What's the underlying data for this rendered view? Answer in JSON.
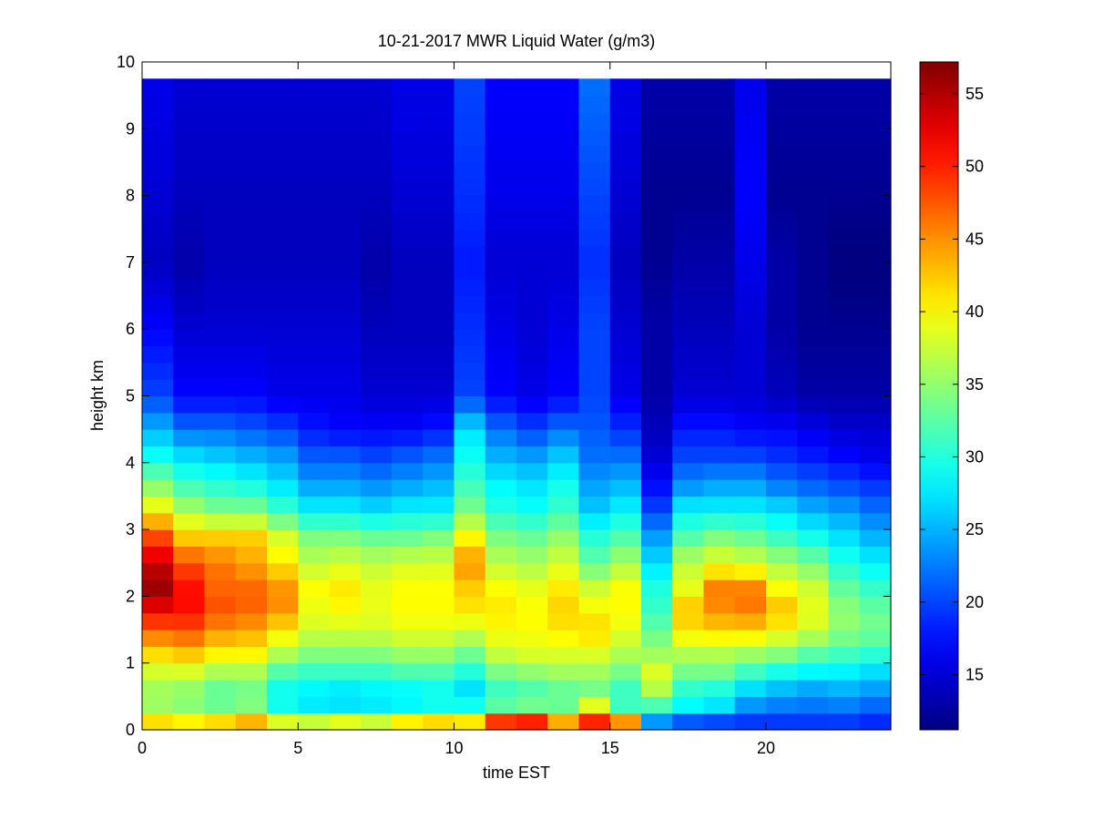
{
  "chart_data": {
    "type": "heatmap",
    "title": "10-21-2017 MWR Liquid Water (g/m3)",
    "xlabel": "time EST",
    "ylabel": "height km",
    "xlim": [
      0,
      24
    ],
    "ylim": [
      0,
      10
    ],
    "x_ticks": [
      "0",
      "5",
      "10",
      "15",
      "20"
    ],
    "y_ticks": [
      "0",
      "1",
      "2",
      "3",
      "4",
      "5",
      "6",
      "7",
      "8",
      "9",
      "10"
    ],
    "colorbar": {
      "colormap": "jet",
      "range": [
        11.2,
        57.2
      ],
      "ticks": [
        "15",
        "20",
        "25",
        "30",
        "35",
        "40",
        "45",
        "50",
        "55"
      ]
    },
    "grid": false,
    "time_hours": [
      0,
      1,
      2,
      3,
      4,
      5,
      6,
      7,
      8,
      9,
      10,
      11,
      12,
      13,
      14,
      15,
      16,
      17,
      18,
      19,
      20,
      21,
      22,
      23
    ],
    "height_profile_km": [
      0.0,
      0.15,
      0.3,
      0.5,
      0.8,
      1.1,
      1.5,
      1.8,
      2.1,
      2.5,
      2.9,
      3.3,
      3.7,
      4.1,
      4.5,
      5.0,
      6.0,
      7.0,
      8.0,
      9.75
    ],
    "columns": [
      [
        48,
        40,
        36,
        35,
        37,
        41,
        47,
        52,
        56,
        54,
        48,
        40,
        34,
        29,
        25,
        20,
        17,
        14,
        15,
        16
      ],
      [
        42,
        40,
        35,
        34,
        37,
        42,
        48,
        51,
        51,
        48,
        42,
        36,
        31,
        27,
        22,
        17,
        15,
        13,
        14,
        15
      ],
      [
        44,
        41,
        34,
        32,
        35,
        40,
        45,
        48,
        47,
        46,
        42,
        34,
        30,
        26,
        22,
        17,
        15,
        14,
        14,
        15
      ],
      [
        45,
        43,
        35,
        33,
        35,
        40,
        44,
        47,
        47,
        44,
        42,
        34,
        29,
        25,
        21,
        17,
        15,
        14,
        14,
        15
      ],
      [
        40,
        38,
        30,
        28,
        31,
        36,
        41,
        45,
        45,
        41,
        38,
        31,
        27,
        24,
        20,
        16,
        15,
        14,
        14,
        15
      ],
      [
        39,
        37,
        28,
        27,
        30,
        34,
        38,
        39,
        40,
        37,
        34,
        28,
        24,
        21,
        18,
        16,
        15,
        14,
        14,
        15
      ],
      [
        42,
        38,
        28,
        26,
        30,
        34,
        38,
        40,
        41,
        38,
        34,
        28,
        24,
        21,
        17,
        16,
        15,
        14,
        14,
        15
      ],
      [
        40,
        37,
        28,
        27,
        30,
        34,
        38,
        39,
        39,
        37,
        33,
        27,
        23,
        20,
        17,
        15,
        14,
        13,
        14,
        15
      ],
      [
        43,
        40,
        29,
        27,
        31,
        35,
        39,
        40,
        40,
        38,
        33,
        28,
        24,
        21,
        17,
        15,
        14,
        14,
        15,
        16
      ],
      [
        44,
        41,
        30,
        28,
        31,
        35,
        39,
        40,
        40,
        38,
        34,
        28,
        25,
        22,
        18,
        15,
        14,
        14,
        15,
        16
      ],
      [
        45,
        40,
        31,
        26,
        29,
        33,
        38,
        41,
        42,
        45,
        40,
        34,
        31,
        29,
        27,
        20,
        19,
        18,
        19,
        20
      ],
      [
        54,
        48,
        34,
        30,
        33,
        37,
        40,
        41,
        40,
        37,
        34,
        30,
        28,
        25,
        22,
        17,
        16,
        15,
        16,
        17
      ],
      [
        55,
        49,
        35,
        31,
        34,
        38,
        40,
        40,
        39,
        36,
        33,
        29,
        27,
        24,
        20,
        16,
        15,
        15,
        16,
        17
      ],
      [
        47,
        43,
        34,
        32,
        35,
        38,
        41,
        42,
        41,
        38,
        35,
        31,
        29,
        26,
        22,
        17,
        16,
        15,
        16,
        17
      ],
      [
        54,
        49,
        42,
        33,
        35,
        38,
        42,
        40,
        38,
        33,
        30,
        26,
        24,
        22,
        21,
        20,
        20,
        19,
        20,
        22
      ],
      [
        48,
        44,
        32,
        30,
        33,
        36,
        39,
        40,
        40,
        36,
        32,
        28,
        25,
        22,
        19,
        16,
        15,
        14,
        15,
        16
      ],
      [
        18,
        25,
        30,
        35,
        39,
        36,
        33,
        31,
        30,
        27,
        24,
        20,
        17,
        15,
        14,
        13,
        13,
        12,
        12,
        13
      ],
      [
        16,
        22,
        28,
        29,
        33,
        36,
        41,
        43,
        39,
        37,
        32,
        28,
        23,
        20,
        18,
        15,
        14,
        13,
        12,
        13
      ],
      [
        17,
        21,
        27,
        28,
        33,
        36,
        42,
        45,
        46,
        39,
        34,
        28,
        24,
        20,
        18,
        15,
        14,
        13,
        12,
        13
      ],
      [
        17,
        20,
        23,
        25,
        30,
        35,
        42,
        46,
        46,
        38,
        33,
        28,
        24,
        20,
        17,
        15,
        15,
        16,
        17,
        16
      ],
      [
        17,
        20,
        22,
        24,
        28,
        34,
        40,
        43,
        40,
        36,
        31,
        27,
        22,
        19,
        17,
        14,
        13,
        13,
        12,
        13
      ],
      [
        17,
        20,
        22,
        23,
        27,
        32,
        38,
        39,
        38,
        34,
        29,
        25,
        21,
        18,
        16,
        13,
        12,
        12,
        12,
        13
      ],
      [
        18,
        20,
        22,
        24,
        27,
        31,
        35,
        35,
        33,
        30,
        27,
        24,
        20,
        17,
        15,
        13,
        12,
        11,
        12,
        13
      ],
      [
        18,
        19,
        21,
        23,
        26,
        30,
        34,
        33,
        31,
        28,
        25,
        22,
        19,
        16,
        15,
        13,
        12,
        11,
        12,
        13
      ]
    ]
  }
}
